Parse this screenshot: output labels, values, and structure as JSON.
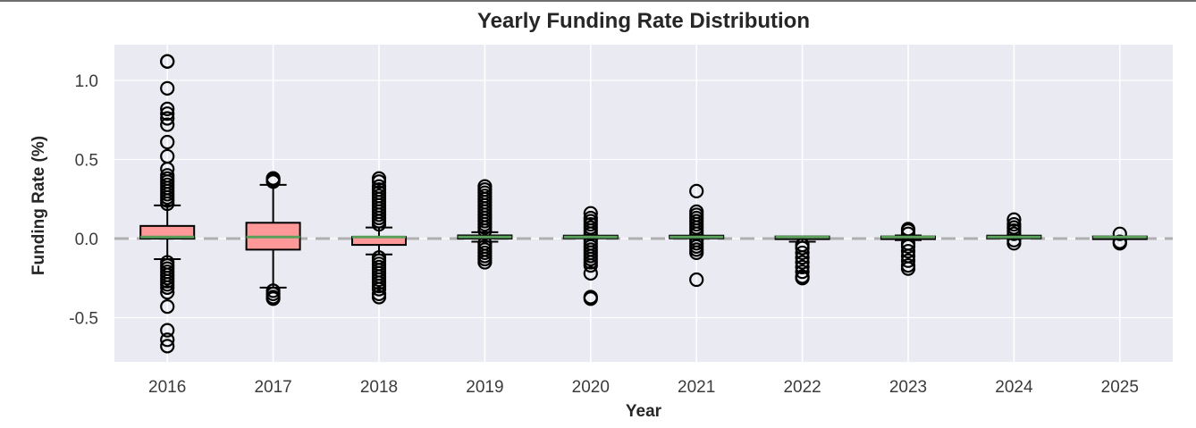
{
  "chart_data": {
    "type": "box",
    "title": "Yearly Funding Rate Distribution",
    "xlabel": "Year",
    "ylabel": "Funding Rate (%)",
    "ylim": [
      -0.78,
      1.22
    ],
    "yticks": [
      -0.5,
      0.0,
      0.5,
      1.0
    ],
    "ytick_labels": [
      "-0.5",
      "0.0",
      "0.5",
      "1.0"
    ],
    "grid": true,
    "reference_line": {
      "y": 0.0,
      "style": "dashed",
      "color": "#b0b0b0"
    },
    "colors": {
      "plot_background": "#eaeaf2",
      "grid": "#ffffff",
      "box_fill": "#ff9999",
      "box_edge": "#000000",
      "median": "#5aa05a",
      "outlier_edge": "#000000"
    },
    "categories": [
      "2016",
      "2017",
      "2018",
      "2019",
      "2020",
      "2021",
      "2022",
      "2023",
      "2024",
      "2025"
    ],
    "boxes": [
      {
        "year": "2016",
        "q1": 0.0,
        "median": 0.01,
        "q3": 0.08,
        "whisker_low": -0.13,
        "whisker_high": 0.21,
        "outliers_high": [
          1.12,
          1.12,
          0.95,
          0.82,
          0.79,
          0.76,
          0.72,
          0.61,
          0.52,
          0.44,
          0.4,
          0.38,
          0.36,
          0.34,
          0.32,
          0.3,
          0.28,
          0.26,
          0.24,
          0.22
        ],
        "outliers_low": [
          -0.15,
          -0.17,
          -0.19,
          -0.21,
          -0.23,
          -0.25,
          -0.27,
          -0.29,
          -0.31,
          -0.34,
          -0.43,
          -0.58,
          -0.64,
          -0.68
        ]
      },
      {
        "year": "2017",
        "q1": -0.07,
        "median": 0.01,
        "q3": 0.1,
        "whisker_low": -0.31,
        "whisker_high": 0.34,
        "outliers_high": [
          0.36,
          0.37,
          0.38,
          0.38
        ],
        "outliers_low": [
          -0.33,
          -0.35,
          -0.37,
          -0.38
        ]
      },
      {
        "year": "2018",
        "q1": -0.04,
        "median": 0.01,
        "q3": 0.01,
        "whisker_low": -0.1,
        "whisker_high": 0.07,
        "outliers_high": [
          0.09,
          0.11,
          0.13,
          0.15,
          0.17,
          0.19,
          0.21,
          0.23,
          0.25,
          0.27,
          0.29,
          0.31,
          0.33,
          0.36,
          0.38
        ],
        "outliers_low": [
          -0.12,
          -0.14,
          -0.16,
          -0.18,
          -0.2,
          -0.22,
          -0.24,
          -0.26,
          -0.28,
          -0.3,
          -0.32,
          -0.35,
          -0.37
        ]
      },
      {
        "year": "2019",
        "q1": 0.0,
        "median": 0.01,
        "q3": 0.02,
        "whisker_low": -0.02,
        "whisker_high": 0.04,
        "outliers_high": [
          0.05,
          0.07,
          0.09,
          0.11,
          0.13,
          0.15,
          0.17,
          0.19,
          0.21,
          0.23,
          0.25,
          0.27,
          0.29,
          0.31,
          0.33
        ],
        "outliers_low": [
          -0.03,
          -0.05,
          -0.07,
          -0.09,
          -0.11,
          -0.13,
          -0.15
        ]
      },
      {
        "year": "2020",
        "q1": 0.01,
        "median": 0.01,
        "q3": 0.01,
        "whisker_low": 0.01,
        "whisker_high": 0.01,
        "outliers_high": [
          0.03,
          0.05,
          0.07,
          0.09,
          0.11,
          0.13,
          0.16
        ],
        "outliers_low": [
          -0.01,
          -0.03,
          -0.05,
          -0.07,
          -0.09,
          -0.11,
          -0.13,
          -0.15,
          -0.17,
          -0.22,
          -0.37,
          -0.38
        ]
      },
      {
        "year": "2021",
        "q1": 0.01,
        "median": 0.01,
        "q3": 0.01,
        "whisker_low": 0.01,
        "whisker_high": 0.01,
        "outliers_high": [
          0.03,
          0.05,
          0.07,
          0.09,
          0.11,
          0.13,
          0.15,
          0.17,
          0.3
        ],
        "outliers_low": [
          -0.01,
          -0.03,
          -0.05,
          -0.07,
          -0.09,
          -0.26
        ]
      },
      {
        "year": "2022",
        "q1": 0.0,
        "median": 0.01,
        "q3": 0.01,
        "whisker_low": -0.02,
        "whisker_high": 0.01,
        "outliers_high": [],
        "outliers_low": [
          -0.04,
          -0.06,
          -0.09,
          -0.12,
          -0.15,
          -0.18,
          -0.21,
          -0.24,
          -0.25
        ]
      },
      {
        "year": "2023",
        "q1": 0.0,
        "median": 0.01,
        "q3": 0.01,
        "whisker_low": -0.01,
        "whisker_high": 0.02,
        "outliers_high": [
          0.03,
          0.05,
          0.06
        ],
        "outliers_low": [
          -0.03,
          -0.05,
          -0.08,
          -0.11,
          -0.14,
          -0.17,
          -0.19
        ]
      },
      {
        "year": "2024",
        "q1": 0.01,
        "median": 0.01,
        "q3": 0.01,
        "whisker_low": 0.01,
        "whisker_high": 0.01,
        "outliers_high": [
          0.03,
          0.05,
          0.07,
          0.09,
          0.12
        ],
        "outliers_low": [
          -0.01,
          -0.03
        ]
      },
      {
        "year": "2025",
        "q1": 0.0,
        "median": 0.01,
        "q3": 0.01,
        "whisker_low": 0.0,
        "whisker_high": 0.01,
        "outliers_high": [
          0.03
        ],
        "outliers_low": [
          -0.02,
          -0.03
        ]
      }
    ]
  }
}
